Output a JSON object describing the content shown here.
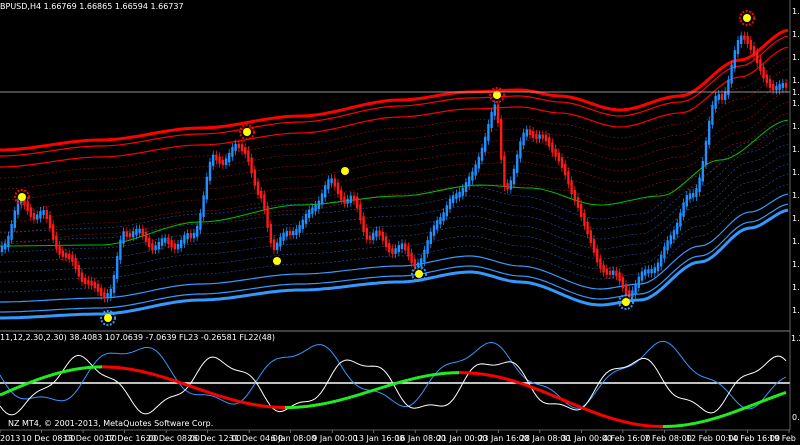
{
  "window": {
    "symbol_caption": "BPUSD,H4  1.66769 1.66865 1.66594 1.66737",
    "current_price_label": "1."
  },
  "indicator": {
    "caption": "11,12,2.30,2.30) 38.4083 107.0639 -7.0639  FL23 -0.26581  FL22(48)",
    "scale_top": "1.2",
    "scale_bottom": "0."
  },
  "copyright": "NZ MT4, © 2001-2013, MetaQuotes Software Corp.",
  "price_scale": [
    "1.",
    "1.",
    "1.",
    "1.",
    "1.",
    "1.",
    "1.",
    "1.",
    "1.",
    "1.",
    "1.",
    "1.",
    "1.",
    "1."
  ],
  "time_axis": [
    "2013",
    "10 Dec 08:00",
    "13 Dec 00:00",
    "17 Dec 16:00",
    "20 Dec 08:00",
    "26 Dec 12:00",
    "31 Dec 04:00",
    "6 Jan 08:00",
    "9 Jan 00:00",
    "13 Jan 16:00",
    "16 Jan 08:00",
    "21 Jan 00:00",
    "23 Jan 16:00",
    "28 Jan 08:00",
    "31 Jan 00:00",
    "4 Feb 16:00",
    "7 Feb 08:00",
    "12 Feb 00:00",
    "14 Feb 16:00",
    "19 Feb"
  ],
  "colors": {
    "background": "#000000",
    "bull_candle": "#1e90ff",
    "bear_candle": "#ff1a1a",
    "upper_band": "#ff0000",
    "lower_band": "#3399ff",
    "midline": "#00c000",
    "signal_star": "#ffff00",
    "osc_green": "#22ee22",
    "osc_red": "#ff0000",
    "osc_white": "#ffffff",
    "osc_blue": "#3399ff",
    "grid_line": "#c0c0c0"
  }
}
